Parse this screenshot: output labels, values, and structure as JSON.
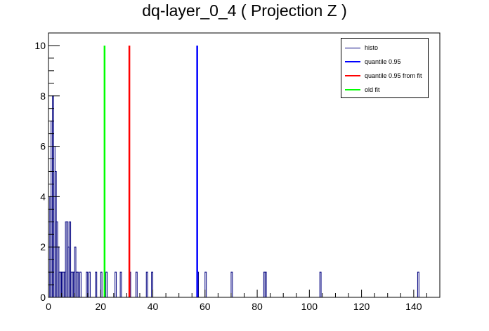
{
  "chart_data": {
    "type": "bar",
    "title": "dq-layer_0_4 ( Projection Z )",
    "xlabel": "",
    "ylabel": "",
    "xlim": [
      0,
      150
    ],
    "ylim": [
      0,
      10.5
    ],
    "xticks": [
      0,
      20,
      40,
      60,
      80,
      100,
      120,
      140
    ],
    "yticks": [
      0,
      2,
      4,
      6,
      8,
      10
    ],
    "grid": false,
    "legend_position": "top-right",
    "bin_width": 0.5,
    "series": [
      {
        "name": "histo",
        "color": "#00007f",
        "bins": [
          {
            "x": 0.0,
            "y": 1
          },
          {
            "x": 0.5,
            "y": 4
          },
          {
            "x": 1.0,
            "y": 7
          },
          {
            "x": 1.5,
            "y": 8
          },
          {
            "x": 2.0,
            "y": 6
          },
          {
            "x": 2.5,
            "y": 5
          },
          {
            "x": 3.0,
            "y": 3
          },
          {
            "x": 3.5,
            "y": 2
          },
          {
            "x": 4.0,
            "y": 1
          },
          {
            "x": 4.5,
            "y": 1
          },
          {
            "x": 5.0,
            "y": 1
          },
          {
            "x": 5.5,
            "y": 1
          },
          {
            "x": 6.0,
            "y": 1
          },
          {
            "x": 6.5,
            "y": 3
          },
          {
            "x": 7.0,
            "y": 3
          },
          {
            "x": 7.5,
            "y": 2
          },
          {
            "x": 8.0,
            "y": 3
          },
          {
            "x": 8.5,
            "y": 1
          },
          {
            "x": 9.0,
            "y": 1
          },
          {
            "x": 9.5,
            "y": 1
          },
          {
            "x": 10.0,
            "y": 2
          },
          {
            "x": 10.5,
            "y": 1
          },
          {
            "x": 11.0,
            "y": 1
          },
          {
            "x": 12.0,
            "y": 1
          },
          {
            "x": 14.5,
            "y": 1
          },
          {
            "x": 15.5,
            "y": 1
          },
          {
            "x": 18.0,
            "y": 1
          },
          {
            "x": 20.0,
            "y": 1
          },
          {
            "x": 22.0,
            "y": 1
          },
          {
            "x": 25.5,
            "y": 1
          },
          {
            "x": 27.5,
            "y": 1
          },
          {
            "x": 31.0,
            "y": 1
          },
          {
            "x": 33.5,
            "y": 1
          },
          {
            "x": 37.5,
            "y": 1
          },
          {
            "x": 39.5,
            "y": 1
          },
          {
            "x": 57.0,
            "y": 1
          },
          {
            "x": 60.0,
            "y": 1
          },
          {
            "x": 70.0,
            "y": 1
          },
          {
            "x": 82.5,
            "y": 1
          },
          {
            "x": 83.0,
            "y": 1
          },
          {
            "x": 104.0,
            "y": 1
          },
          {
            "x": 141.5,
            "y": 1
          }
        ]
      },
      {
        "name": "quantile 0.95",
        "color": "#0000ff",
        "x": 57.0,
        "y": 10
      },
      {
        "name": "quantile 0.95 from fit",
        "color": "#ff0000",
        "x": 31.0,
        "y": 10
      },
      {
        "name": "old fit",
        "color": "#00ff00",
        "x": 21.5,
        "y": 10
      }
    ]
  }
}
